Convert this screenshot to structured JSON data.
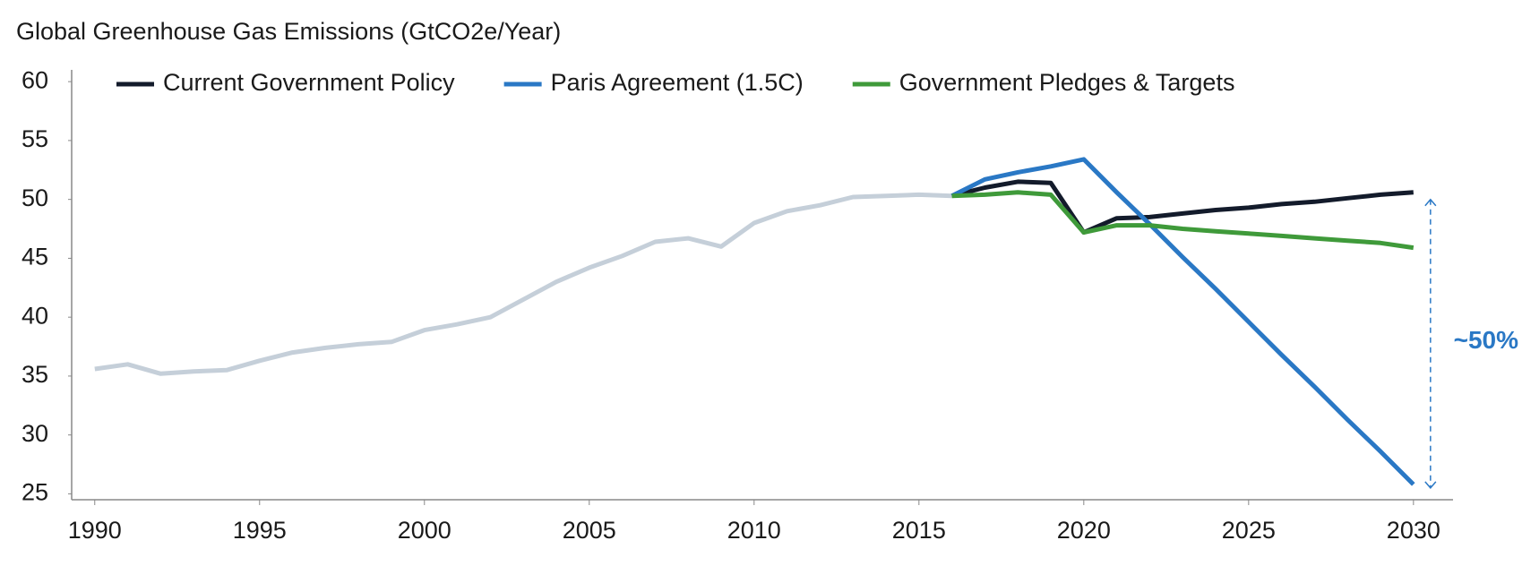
{
  "chart_data": {
    "type": "line",
    "title": "Global Greenhouse Gas Emissions (GtCO2e/Year)",
    "x": [
      1990,
      1991,
      1992,
      1993,
      1994,
      1995,
      1996,
      1997,
      1998,
      1999,
      2000,
      2001,
      2002,
      2003,
      2004,
      2005,
      2006,
      2007,
      2008,
      2009,
      2010,
      2011,
      2012,
      2013,
      2014,
      2015,
      2016,
      2017,
      2018,
      2019,
      2020,
      2021,
      2022,
      2023,
      2024,
      2025,
      2026,
      2027,
      2028,
      2029,
      2030
    ],
    "series": [
      {
        "color": "#c5cfd9",
        "values": [
          35.6,
          36.0,
          35.2,
          35.4,
          35.5,
          36.3,
          37.0,
          37.4,
          37.7,
          37.9,
          38.9,
          39.4,
          40.0,
          41.5,
          43.0,
          44.2,
          45.2,
          46.4,
          46.7,
          46.0,
          48.0,
          49.0,
          49.5,
          50.2,
          50.3,
          50.4,
          50.3,
          null,
          null,
          null,
          null,
          null,
          null,
          null,
          null,
          null,
          null,
          null,
          null,
          null,
          null
        ]
      },
      {
        "name": "Current Government Policy",
        "color": "#131b2b",
        "values": [
          null,
          null,
          null,
          null,
          null,
          null,
          null,
          null,
          null,
          null,
          null,
          null,
          null,
          null,
          null,
          null,
          null,
          null,
          null,
          null,
          null,
          null,
          null,
          null,
          null,
          null,
          50.3,
          51.0,
          51.5,
          51.4,
          47.2,
          48.4,
          48.5,
          48.8,
          49.1,
          49.3,
          49.6,
          49.8,
          50.1,
          50.4,
          50.6
        ]
      },
      {
        "name": "Paris Agreement (1.5C)",
        "color": "#2a78c5",
        "values": [
          null,
          null,
          null,
          null,
          null,
          null,
          null,
          null,
          null,
          null,
          null,
          null,
          null,
          null,
          null,
          null,
          null,
          null,
          null,
          null,
          null,
          null,
          null,
          null,
          null,
          null,
          50.3,
          51.7,
          52.3,
          52.8,
          53.4,
          50.6,
          47.9,
          45.1,
          42.4,
          39.6,
          36.8,
          34.1,
          31.3,
          28.6,
          25.8
        ]
      },
      {
        "name": "Government Pledges & Targets",
        "color": "#3f9a3a",
        "values": [
          null,
          null,
          null,
          null,
          null,
          null,
          null,
          null,
          null,
          null,
          null,
          null,
          null,
          null,
          null,
          null,
          null,
          null,
          null,
          null,
          null,
          null,
          null,
          null,
          null,
          null,
          50.3,
          50.4,
          50.6,
          50.4,
          47.2,
          47.8,
          47.8,
          47.5,
          47.3,
          47.1,
          46.9,
          46.7,
          46.5,
          46.3,
          45.9
        ]
      }
    ],
    "xlim": [
      1989.3,
      2031.2
    ],
    "xticks": [
      1990,
      1995,
      2000,
      2005,
      2010,
      2015,
      2020,
      2025,
      2030
    ],
    "ylim": [
      24.5,
      61
    ],
    "yticks": [
      25,
      30,
      35,
      40,
      45,
      50,
      55,
      60
    ],
    "grid": false,
    "legend": "top",
    "annotation": {
      "text": "~50%",
      "color": "#2a78c5"
    }
  }
}
